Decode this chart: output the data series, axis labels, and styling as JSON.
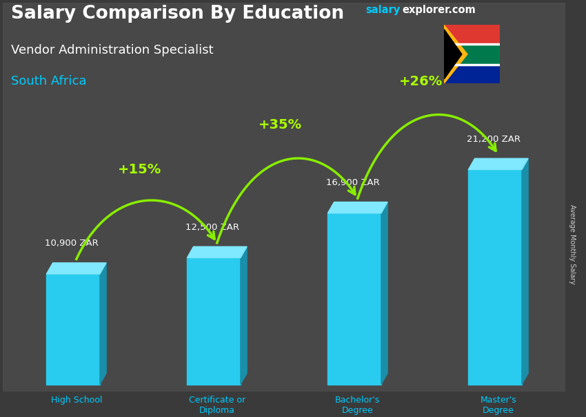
{
  "title_main": "Salary Comparison By Education",
  "title_sub": "Vendor Administration Specialist",
  "title_country": "South Africa",
  "watermark_salary": "salary",
  "watermark_rest": "explorer.com",
  "ylabel": "Average Monthly Salary",
  "categories": [
    "High School",
    "Certificate or\nDiploma",
    "Bachelor's\nDegree",
    "Master's\nDegree"
  ],
  "values": [
    10900,
    12500,
    16900,
    21200
  ],
  "labels": [
    "10,900 ZAR",
    "12,500 ZAR",
    "16,900 ZAR",
    "21,200 ZAR"
  ],
  "pct_labels": [
    "+15%",
    "+35%",
    "+26%"
  ],
  "bar_color_front": "#29ccee",
  "bar_color_side": "#1a8faa",
  "bar_color_top": "#80e8ff",
  "arrow_color": "#88ee00",
  "pct_color": "#aaff00",
  "title_color": "#ffffff",
  "sub_title_color": "#ffffff",
  "country_color": "#00ccff",
  "label_color": "#ffffff",
  "cat_label_color": "#00ccff",
  "bg_color": "#3a3a3a",
  "watermark_salary_color": "#00ccff",
  "watermark_rest_color": "#ffffff",
  "ylabel_color": "#cccccc",
  "figsize": [
    8.5,
    6.06
  ],
  "dpi": 100
}
